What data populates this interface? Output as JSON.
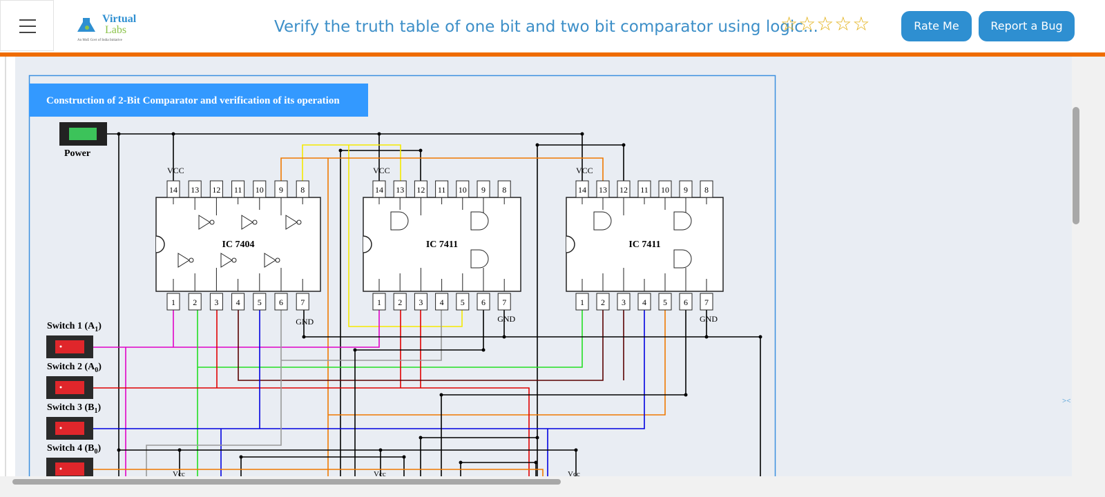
{
  "header": {
    "logo_name": "Virtual",
    "logo_sub": "Labs",
    "logo_tagline": "An MoE Govt of India Initiative",
    "title": "Verify the truth table of one bit and two bit comparator using logic...",
    "buttons": [
      "Rate Me",
      "Report a Bug"
    ]
  },
  "panel": {
    "title": "Construction of 2-Bit Comparator and verification of its operation",
    "power_label": "Power",
    "switches": [
      [
        "Switch 1 (A",
        "1",
        ")"
      ],
      [
        "Switch 2 (A",
        "0",
        ")"
      ],
      [
        "Switch 3 (B",
        "1",
        ")"
      ],
      [
        "Switch 4 (B",
        "0",
        ")"
      ]
    ],
    "ics": [
      {
        "name": "IC 7404",
        "vcc": "VCC",
        "gnd": "GND",
        "top_pins": [
          "14",
          "13",
          "12",
          "11",
          "10",
          "9",
          "8"
        ],
        "bottom_pins": [
          "1",
          "2",
          "3",
          "4",
          "5",
          "6",
          "7"
        ]
      },
      {
        "name": "IC 7411",
        "vcc": "VCC",
        "gnd": "GND",
        "top_pins": [
          "14",
          "13",
          "12",
          "11",
          "10",
          "9",
          "8"
        ],
        "bottom_pins": [
          "1",
          "2",
          "3",
          "4",
          "5",
          "6",
          "7"
        ]
      },
      {
        "name": "IC 7411",
        "vcc": "VCC",
        "gnd": "GND",
        "top_pins": [
          "14",
          "13",
          "12",
          "11",
          "10",
          "9",
          "8"
        ],
        "bottom_pins": [
          "1",
          "2",
          "3",
          "4",
          "5",
          "6",
          "7"
        ]
      }
    ],
    "bottom_vcc": [
      "Vcc",
      "Vcc",
      "Vcc"
    ]
  }
}
